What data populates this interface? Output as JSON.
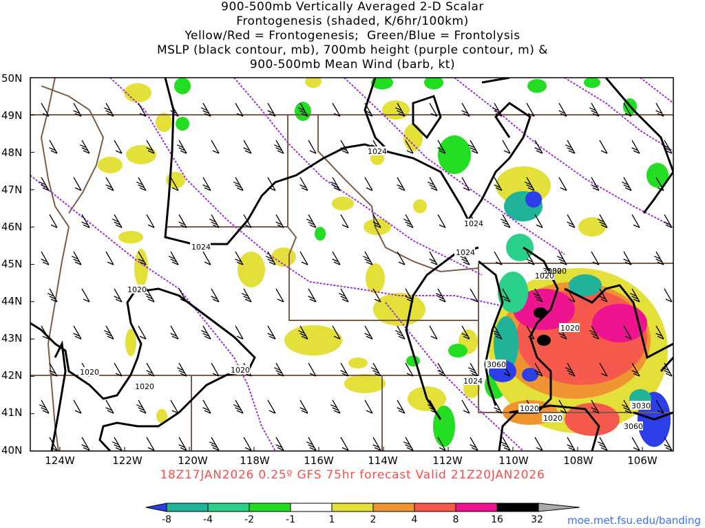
{
  "title_lines": [
    "900-500mb Vertically Averaged 2-D Scalar",
    "Frontogenesis (shaded, K/6hr/100km)",
    "Yellow/Red = Frontogenesis;  Green/Blue = Frontolysis",
    "MSLP (black contour, mb), 700mb height (purple contour, m) &",
    "900-500mb Mean Wind (barb, kt)"
  ],
  "lat_labels": [
    "50N",
    "49N",
    "48N",
    "47N",
    "46N",
    "45N",
    "44N",
    "43N",
    "42N",
    "41N",
    "40N"
  ],
  "lon_labels": [
    "124W",
    "122W",
    "120W",
    "118W",
    "116W",
    "114W",
    "112W",
    "110W",
    "108W",
    "106W"
  ],
  "contour_labels": {
    "mslp": [
      "1024",
      "1024",
      "1024",
      "1024",
      "1020",
      "1020",
      "1020",
      "1020",
      "1020",
      "1020",
      "1024",
      "1020",
      "1020",
      "1020"
    ],
    "height": [
      "3060",
      "3030",
      "3060",
      "3030"
    ]
  },
  "valid_text": "18Z17JAN2026 0.25º GFS 75hr forecast Valid 21Z20JAN2026",
  "colorbar": {
    "labels": [
      "-8",
      "-4",
      "-2",
      "-1",
      "1",
      "2",
      "4",
      "8",
      "16",
      "32"
    ],
    "colors": [
      "#2c3ee8",
      "#20b39a",
      "#2bd08a",
      "#22dd22",
      "#ffffff",
      "#e4e03a",
      "#ee9431",
      "#f55a4d",
      "#ee1490",
      "#000000",
      "#aaaaaa"
    ]
  },
  "credit": "moe.met.fsu.edu/banding",
  "colors": {
    "mslp_contour": "#000000",
    "height_contour": "#9b30d9",
    "boundaries": "#7a5a48",
    "frame": "#000000"
  },
  "legend_icons": [
    "wind-barb-icon"
  ]
}
